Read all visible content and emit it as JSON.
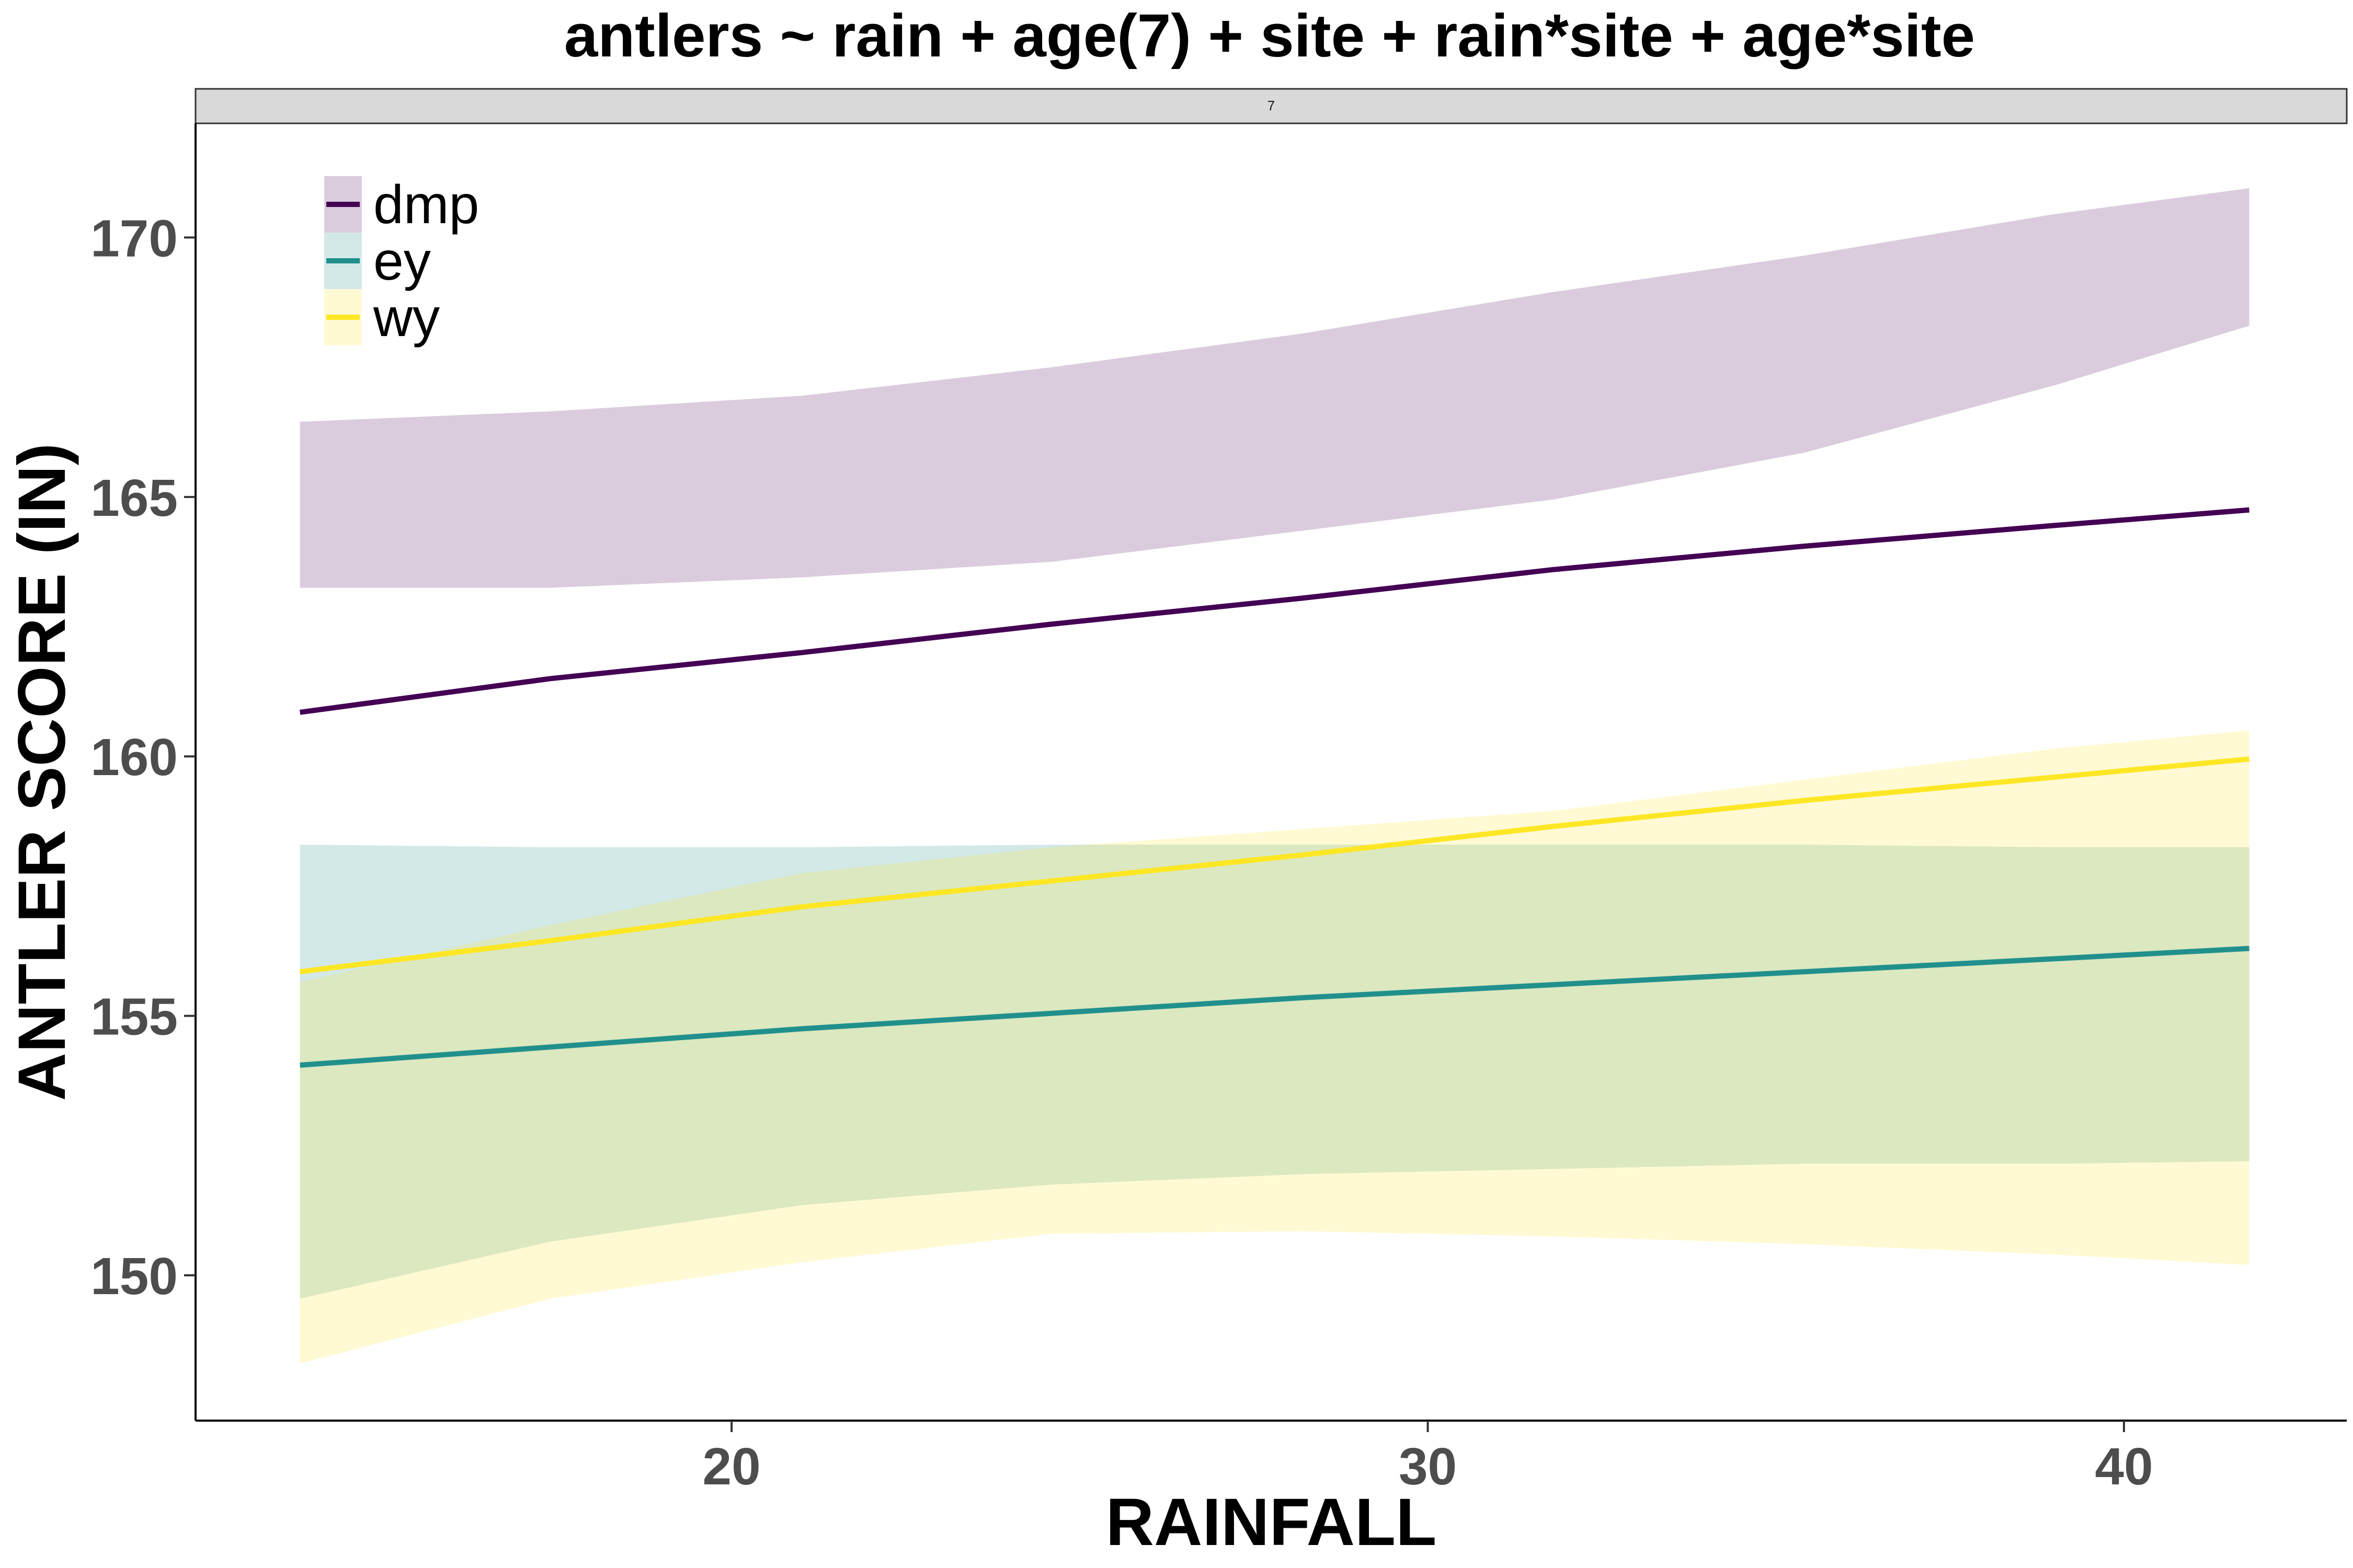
{
  "chart_data": {
    "type": "line",
    "title": "antlers ~ rain + age(7) + site + rain*site + age*site",
    "facet_label": "7",
    "xlabel": "RAINFALL",
    "ylabel": "ANTLER SCORE (IN)",
    "xlim": [
      12.3,
      43.2
    ],
    "ylim": [
      147.2,
      172.2
    ],
    "xticks": [
      20,
      30,
      40
    ],
    "yticks": [
      150,
      155,
      160,
      165,
      170
    ],
    "grid": false,
    "legend_position": "top-left",
    "series": [
      {
        "name": "dmp",
        "color": "#440154",
        "fill": "#dbcbde",
        "x": [
          13.8,
          17.4,
          21.0,
          24.6,
          28.2,
          31.8,
          35.4,
          39.0,
          41.8
        ],
        "y": [
          160.85,
          161.5,
          162.0,
          162.55,
          163.05,
          163.6,
          164.05,
          164.45,
          164.75
        ],
        "lower": [
          163.25,
          163.25,
          163.45,
          163.75,
          164.35,
          164.95,
          165.85,
          167.15,
          168.3
        ],
        "upper": [
          166.45,
          166.65,
          166.95,
          167.5,
          168.15,
          168.95,
          169.65,
          170.45,
          170.95
        ]
      },
      {
        "name": "ey",
        "color": "#21908c",
        "fill": "#d4e7e3",
        "x": [
          13.8,
          17.4,
          21.0,
          24.6,
          28.2,
          31.8,
          35.4,
          39.0,
          41.8
        ],
        "y": [
          154.05,
          154.4,
          154.75,
          155.05,
          155.35,
          155.6,
          155.85,
          156.1,
          156.3
        ],
        "lower": [
          149.55,
          150.65,
          151.35,
          151.75,
          151.95,
          152.05,
          152.15,
          152.15,
          152.2
        ],
        "upper": [
          158.3,
          158.25,
          158.25,
          158.3,
          158.3,
          158.3,
          158.3,
          158.25,
          158.25
        ]
      },
      {
        "name": "wy",
        "color": "#fde725",
        "fill": "#fff9d4",
        "x": [
          13.8,
          17.4,
          21.0,
          24.6,
          28.2,
          31.8,
          35.4,
          39.0,
          41.8
        ],
        "y": [
          155.85,
          156.45,
          157.1,
          157.6,
          158.1,
          158.65,
          159.15,
          159.6,
          159.95
        ],
        "lower": [
          148.3,
          149.55,
          150.25,
          150.8,
          150.85,
          150.75,
          150.6,
          150.4,
          150.2
        ],
        "upper": [
          155.65,
          156.75,
          157.75,
          158.25,
          158.6,
          158.95,
          159.55,
          160.15,
          160.5
        ]
      }
    ]
  }
}
